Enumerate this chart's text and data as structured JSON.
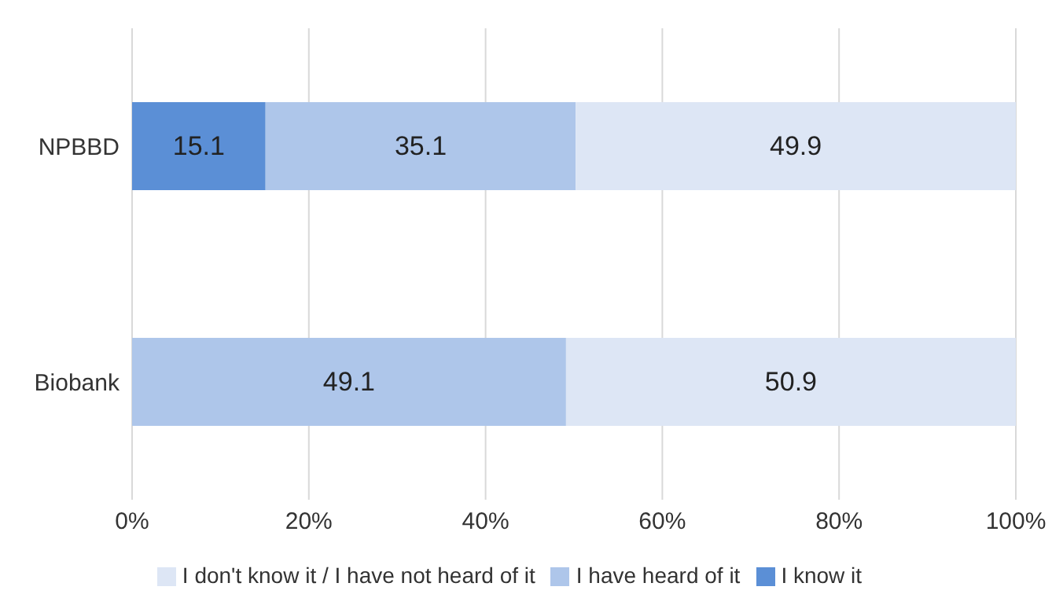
{
  "chart_data": {
    "type": "bar",
    "orientation": "horizontal",
    "stacked": true,
    "categories": [
      "NPBBD",
      "Biobank"
    ],
    "series": [
      {
        "name": "I know it",
        "color": "#5b8fd6",
        "values": [
          15.1,
          0
        ],
        "value_labels": [
          "15.1",
          null
        ]
      },
      {
        "name": "I have heard of it",
        "color": "#aec6ea",
        "values": [
          35.1,
          49.1
        ],
        "value_labels": [
          "35.1",
          "49.1"
        ]
      },
      {
        "name": "I don't know it / I have not heard of it",
        "color": "#dde6f5",
        "values": [
          49.9,
          50.9
        ],
        "value_labels": [
          "49.9",
          "50.9"
        ]
      }
    ],
    "xlim": [
      0,
      100
    ],
    "xticks": [
      {
        "value": 0,
        "label": "0%"
      },
      {
        "value": 20,
        "label": "20%"
      },
      {
        "value": 40,
        "label": "40%"
      },
      {
        "value": 60,
        "label": "60%"
      },
      {
        "value": 80,
        "label": "80%"
      },
      {
        "value": 100,
        "label": "100%"
      }
    ],
    "grid": "x",
    "legend": "bottom"
  }
}
